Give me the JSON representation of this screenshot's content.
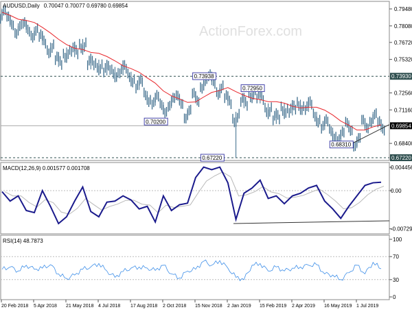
{
  "chart_data": [
    {
      "type": "line",
      "title": "AUDUSD,Daily",
      "ohlc_readout": "0.70047 0.70077 0.69780 0.69854",
      "watermark": "ActionForex.com",
      "y_ticks": [
        "0.79480",
        "0.78080",
        "0.76720",
        "0.75320",
        "0.72560",
        "0.71160",
        "0.68400"
      ],
      "y_tick_values": [
        0.7948,
        0.7808,
        0.7672,
        0.7532,
        0.7256,
        0.7116,
        0.684
      ],
      "ylim": [
        0.6705,
        0.7985
      ],
      "levels": [
        {
          "label": "0.73930",
          "value": 0.7393,
          "style": "dashed"
        },
        {
          "label": "0.67220",
          "value": 0.6722,
          "style": "dashed"
        }
      ],
      "current_price": {
        "label": "0.69854",
        "value": 0.69854
      },
      "annotations": [
        {
          "label": "0.73938",
          "index": 25,
          "value": 0.73938
        },
        {
          "label": "0.72950",
          "index": 31,
          "value": 0.7295
        },
        {
          "label": "0.70200",
          "index": 19,
          "value": 0.702
        },
        {
          "label": "0.67220",
          "index": 26,
          "value": 0.6722
        },
        {
          "label": "0.68310",
          "index": 42,
          "value": 0.6831
        }
      ],
      "close": [
        0.79,
        0.785,
        0.778,
        0.78,
        0.775,
        0.77,
        0.762,
        0.752,
        0.758,
        0.76,
        0.765,
        0.75,
        0.748,
        0.745,
        0.742,
        0.745,
        0.738,
        0.733,
        0.722,
        0.72,
        0.713,
        0.718,
        0.72,
        0.708,
        0.722,
        0.733,
        0.737,
        0.728,
        0.72,
        0.705,
        0.718,
        0.725,
        0.722,
        0.712,
        0.705,
        0.712,
        0.712,
        0.715,
        0.715,
        0.705,
        0.7,
        0.692,
        0.69,
        0.698,
        0.685,
        0.7,
        0.705,
        0.6985
      ],
      "flash_low": {
        "index": 29,
        "value": 0.6722
      },
      "series_colors": {
        "price": "#3a6a8a",
        "ma": "#e8262b"
      }
    },
    {
      "type": "line",
      "title": "MACD(12,26,9) 0.001577 0.001708",
      "y_ticks": [
        "0.004456",
        "0.00",
        "-0.007298"
      ],
      "y_tick_values": [
        0.004456,
        0,
        -0.007298
      ],
      "ylim": [
        -0.0075,
        0.0052
      ],
      "macd": [
        -0.0002,
        -0.002,
        -0.001,
        -0.0038,
        -0.0042,
        0,
        -0.003,
        -0.0063,
        -0.005,
        -0.002,
        0.0007,
        -0.004,
        -0.005,
        -0.0022,
        -0.002,
        -0.001,
        -0.0018,
        -0.0035,
        -0.003,
        -0.006,
        -0.001,
        -0.0038,
        -0.0027,
        -0.0024,
        0.0025,
        0.0045,
        0.004,
        0.0045,
        0.0015,
        -0.0055,
        -0.0005,
        0.0005,
        0.002,
        -0.0015,
        -0.001,
        -0.0025,
        -0.001,
        -0.0005,
        0.0005,
        0.001,
        -0.002,
        -0.0035,
        -0.0053,
        -0.003,
        -0.001,
        0.001,
        0.0015,
        0.0016
      ],
      "series_colors": {
        "macd": "#1a1a8c",
        "signal": "#b8b8b8"
      }
    },
    {
      "type": "line",
      "title": "RSI(14) 48.7873",
      "y_ticks": [
        "100",
        "70",
        "30",
        "0"
      ],
      "y_tick_values": [
        100,
        70,
        30,
        0
      ],
      "ylim": [
        0,
        100
      ],
      "rsi": [
        48,
        52,
        45,
        55,
        48,
        50,
        56,
        40,
        32,
        38,
        48,
        52,
        58,
        45,
        34,
        44,
        50,
        52,
        50,
        46,
        55,
        40,
        33,
        45,
        48,
        62,
        55,
        63,
        50,
        34,
        30,
        55,
        58,
        45,
        52,
        45,
        50,
        52,
        55,
        56,
        40,
        38,
        30,
        42,
        55,
        40,
        60,
        48.8
      ],
      "series_colors": {
        "rsi": "#3d8ee8"
      }
    }
  ],
  "x_axis": {
    "labels": [
      "20 Feb 2018",
      "5 Apr 2018",
      "21 May 2018",
      "4 Jul 2018",
      "17 Aug 2018",
      "2 Oct 2018",
      "15 Nov 2018",
      "2 Jan 2019",
      "15 Feb 2019",
      "2 Apr 2019",
      "16 May 2019",
      "1 Jul 2019"
    ],
    "label_index": [
      0,
      5,
      10,
      14,
      19,
      22,
      26,
      29,
      33,
      38,
      42,
      46
    ]
  }
}
